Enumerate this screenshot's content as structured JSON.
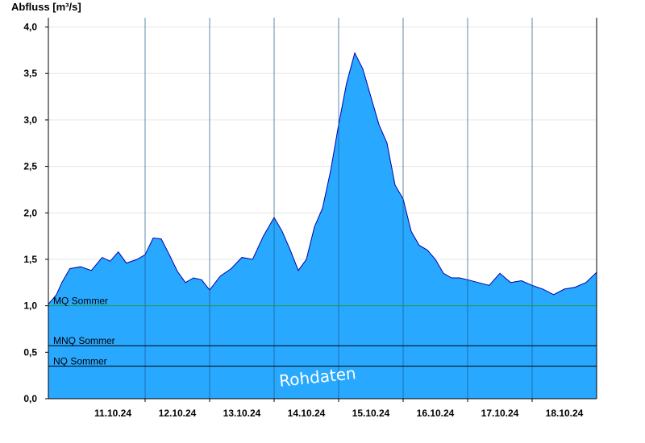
{
  "chart_data": {
    "type": "area",
    "title": "",
    "xlabel": "",
    "ylabel": "Abfluss [m³/s]",
    "ylim": [
      0,
      4.1
    ],
    "yticks": [
      0,
      0.5,
      1.0,
      1.5,
      2.0,
      2.5,
      3.0,
      3.5,
      4.0
    ],
    "ytick_labels": [
      "0,0",
      "0,5",
      "1,0",
      "1,5",
      "2,0",
      "2,5",
      "3,0",
      "3,5",
      "4,0"
    ],
    "x_range_days": [
      "10.10.24 12:00",
      "18.10.24 24:00"
    ],
    "xtick_labels": [
      "11.10.24",
      "12.10.24",
      "13.10.24",
      "14.10.24",
      "15.10.24",
      "16.10.24",
      "17.10.24",
      "18.10.24"
    ],
    "grid": true,
    "fill_color": "#29a8ff",
    "line_color": "#0000aa",
    "series": [
      {
        "x": [
          "10.10.24 12:00",
          "10.10.24 13:00",
          "10.10.24 15:00",
          "10.10.24 17:00",
          "10.10.24 20:00",
          "11.10.24 00:00",
          "11.10.24 04:00",
          "11.10.24 08:00",
          "11.10.24 11:00",
          "11.10.24 14:00",
          "11.10.24 17:00",
          "11.10.24 21:00",
          "12.10.24 00:00",
          "12.10.24 03:00",
          "12.10.24 06:00",
          "12.10.24 09:00",
          "12.10.24 12:00",
          "12.10.24 15:00",
          "12.10.24 18:00",
          "12.10.24 21:00",
          "13.10.24 00:00",
          "13.10.24 04:00",
          "13.10.24 08:00",
          "13.10.24 12:00",
          "13.10.24 16:00",
          "13.10.24 20:00",
          "14.10.24 00:00",
          "14.10.24 03:00",
          "14.10.24 06:00",
          "14.10.24 09:00",
          "14.10.24 12:00",
          "14.10.24 15:00",
          "14.10.24 18:00",
          "14.10.24 21:00",
          "15.10.24 00:00",
          "15.10.24 03:00",
          "15.10.24 06:00",
          "15.10.24 09:00",
          "15.10.24 12:00",
          "15.10.24 15:00",
          "15.10.24 18:00",
          "15.10.24 21:00",
          "16.10.24 00:00",
          "16.10.24 03:00",
          "16.10.24 06:00",
          "16.10.24 09:00",
          "16.10.24 12:00",
          "16.10.24 15:00",
          "16.10.24 18:00",
          "16.10.24 21:00",
          "17.10.24 00:00",
          "17.10.24 04:00",
          "17.10.24 08:00",
          "17.10.24 12:00",
          "17.10.24 16:00",
          "17.10.24 20:00",
          "18.10.24 00:00",
          "18.10.24 04:00",
          "18.10.24 08:00",
          "18.10.24 12:00",
          "18.10.24 16:00",
          "18.10.24 20:00",
          "18.10.24 24:00"
        ],
        "values": [
          1.02,
          1.05,
          1.12,
          1.25,
          1.4,
          1.42,
          1.38,
          1.52,
          1.48,
          1.58,
          1.46,
          1.5,
          1.55,
          1.73,
          1.72,
          1.55,
          1.37,
          1.25,
          1.3,
          1.28,
          1.17,
          1.32,
          1.4,
          1.52,
          1.5,
          1.75,
          1.95,
          1.8,
          1.6,
          1.38,
          1.5,
          1.85,
          2.05,
          2.45,
          2.95,
          3.4,
          3.72,
          3.55,
          3.25,
          2.95,
          2.75,
          2.3,
          2.15,
          1.8,
          1.65,
          1.6,
          1.5,
          1.35,
          1.3,
          1.3,
          1.28,
          1.25,
          1.22,
          1.35,
          1.25,
          1.27,
          1.22,
          1.18,
          1.12,
          1.18,
          1.2,
          1.25,
          1.36
        ]
      }
    ],
    "reference_lines": [
      {
        "name": "MQ Sommer",
        "value": 1.0,
        "color": "#1f9a3c"
      },
      {
        "name": "MNQ Sommer",
        "value": 0.57,
        "color": "#000000"
      },
      {
        "name": "NQ Sommer",
        "value": 0.35,
        "color": "#000000"
      }
    ],
    "watermark": "Rohdaten"
  }
}
